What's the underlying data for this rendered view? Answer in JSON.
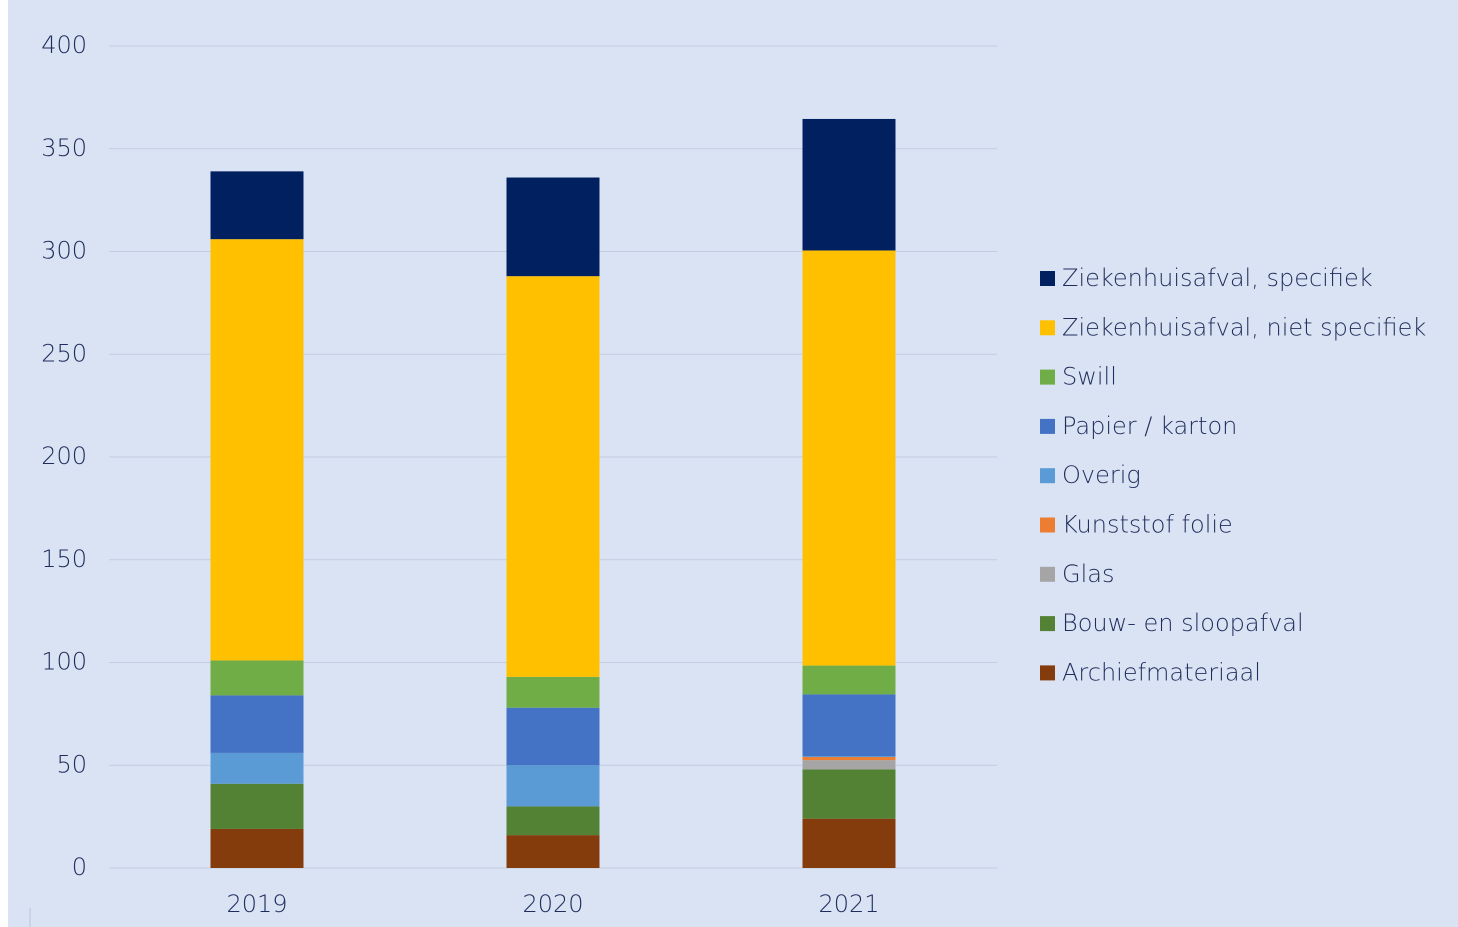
{
  "chart_data": {
    "type": "stacked_bar",
    "categories": [
      "2019",
      "2020",
      "2021"
    ],
    "series": [
      {
        "name": "Archiefmateriaal",
        "color": "#843c0c",
        "values": [
          19,
          16,
          24
        ]
      },
      {
        "name": "Bouw- en sloopafval",
        "color": "#548235",
        "values": [
          22,
          14,
          24
        ]
      },
      {
        "name": "Glas",
        "color": "#a5a5a5",
        "values": [
          0,
          0,
          4.5
        ]
      },
      {
        "name": "Kunststof folie",
        "color": "#ed7d31",
        "values": [
          0,
          0,
          1.5
        ]
      },
      {
        "name": "Overig",
        "color": "#5b9bd5",
        "values": [
          15,
          20,
          0.5
        ]
      },
      {
        "name": "Papier / karton",
        "color": "#4472c4",
        "values": [
          28,
          28,
          30
        ]
      },
      {
        "name": "Swill",
        "color": "#70ad47",
        "values": [
          17,
          15,
          14
        ]
      },
      {
        "name": "Ziekenhuisafval, niet specifiek",
        "color": "#ffc000",
        "values": [
          205,
          195,
          202
        ]
      },
      {
        "name": "Ziekenhuisafval, specifiek",
        "color": "#002060",
        "values": [
          33,
          48,
          64
        ]
      }
    ],
    "ylim": [
      0,
      400
    ],
    "yticks": [
      0,
      50,
      100,
      150,
      200,
      250,
      300,
      350,
      400
    ],
    "grid": true,
    "legend": "right"
  }
}
